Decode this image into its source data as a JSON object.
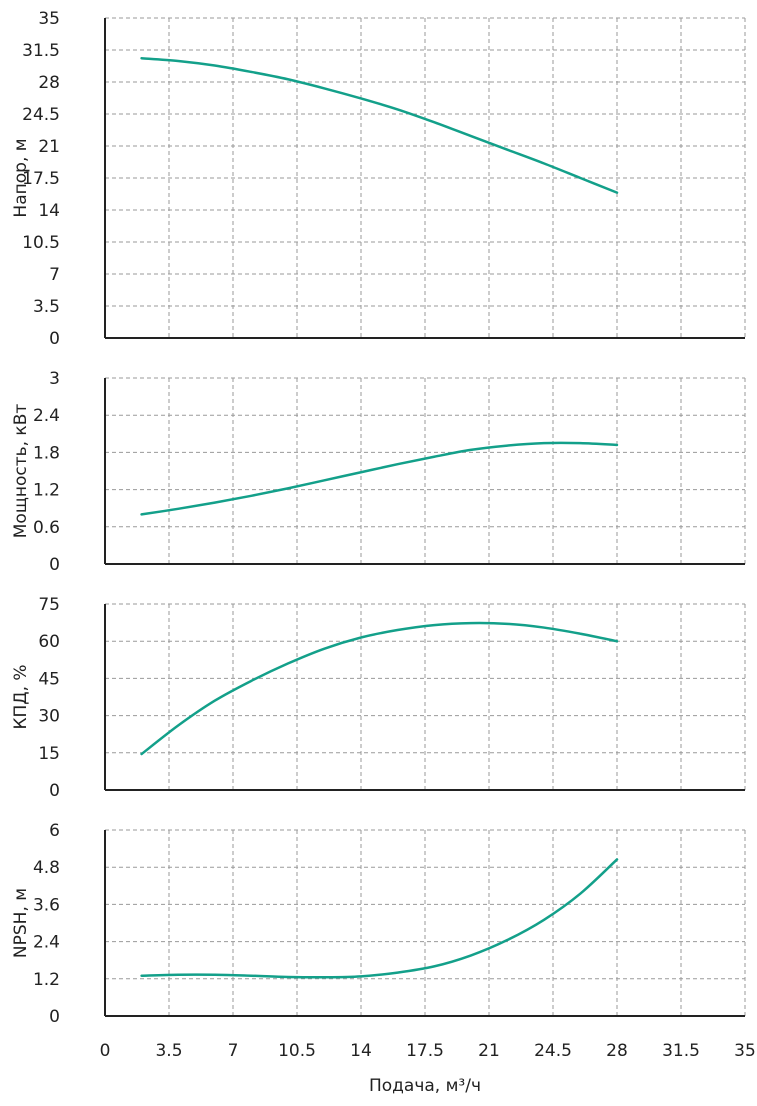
{
  "colors": {
    "curve": "#13A08A",
    "grid": "#9a9a9a",
    "axis": "#222222",
    "text": "#222222"
  },
  "xlabel": "Подача, м³/ч",
  "chart_data": [
    {
      "type": "line",
      "ylabel": "Напор, м",
      "ylim": [
        0,
        35
      ],
      "xlim": [
        0,
        35
      ],
      "grid": true,
      "yticks": [
        "0",
        "3.5",
        "7",
        "10.5",
        "14",
        "17.5",
        "21",
        "24.5",
        "28",
        "31.5",
        "35"
      ],
      "series": [
        {
          "x": [
            2,
            4,
            6,
            8,
            10,
            12,
            14,
            16,
            18,
            20,
            22,
            24,
            26,
            28
          ],
          "y": [
            30.6,
            30.3,
            29.8,
            29.1,
            28.3,
            27.3,
            26.2,
            25.0,
            23.6,
            22.1,
            20.6,
            19.1,
            17.5,
            15.9
          ]
        }
      ]
    },
    {
      "type": "line",
      "ylabel": "Мощность, кВт",
      "ylim": [
        0,
        3
      ],
      "xlim": [
        0,
        35
      ],
      "grid": true,
      "yticks": [
        "0",
        "0.6",
        "1.2",
        "1.8",
        "2.4",
        "3"
      ],
      "series": [
        {
          "x": [
            2,
            4,
            6,
            8,
            10,
            12,
            14,
            16,
            18,
            20,
            22,
            24,
            26,
            28
          ],
          "y": [
            0.8,
            0.89,
            0.99,
            1.1,
            1.22,
            1.35,
            1.48,
            1.61,
            1.73,
            1.84,
            1.91,
            1.95,
            1.95,
            1.92
          ]
        }
      ]
    },
    {
      "type": "line",
      "ylabel": "КПД, %",
      "ylim": [
        0,
        75
      ],
      "xlim": [
        0,
        35
      ],
      "grid": true,
      "yticks": [
        "0",
        "15",
        "30",
        "45",
        "60",
        "75"
      ],
      "series": [
        {
          "x": [
            2,
            4,
            6,
            8,
            10,
            12,
            14,
            16,
            18,
            20,
            22,
            24,
            26,
            28
          ],
          "y": [
            14.5,
            26,
            36,
            44,
            51,
            57,
            61.5,
            64.5,
            66.5,
            67.3,
            67,
            65.5,
            63,
            60
          ]
        }
      ]
    },
    {
      "type": "line",
      "ylabel": "NPSH, м",
      "ylim": [
        0,
        6
      ],
      "xlim": [
        0,
        35
      ],
      "grid": true,
      "yticks": [
        "0",
        "1.2",
        "2.4",
        "3.6",
        "4.8",
        "6"
      ],
      "xticks": [
        "0",
        "3.5",
        "7",
        "10.5",
        "14",
        "17.5",
        "21",
        "24.5",
        "28",
        "31.5",
        "35"
      ],
      "series": [
        {
          "x": [
            2,
            4,
            6,
            8,
            10,
            12,
            14,
            16,
            18,
            20,
            22,
            24,
            26,
            28
          ],
          "y": [
            1.3,
            1.33,
            1.33,
            1.3,
            1.26,
            1.25,
            1.28,
            1.4,
            1.6,
            1.95,
            2.45,
            3.1,
            3.95,
            5.05
          ]
        }
      ]
    }
  ]
}
